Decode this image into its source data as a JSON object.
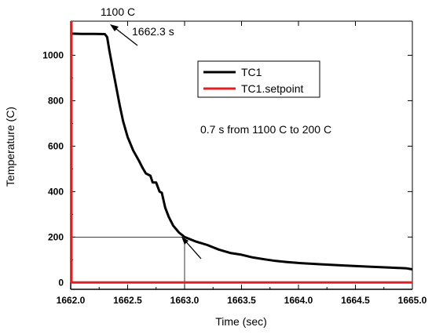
{
  "chart_data": {
    "type": "line",
    "xlabel": "Time (sec)",
    "ylabel": "Temperature (C)",
    "xlim": [
      1662.0,
      1665.0
    ],
    "ylim": [
      -30,
      1150
    ],
    "x_ticks": [
      "1662.0",
      "1662.5",
      "1663.0",
      "1663.5",
      "1664.0",
      "1664.5",
      "1665.0"
    ],
    "y_ticks": [
      "0",
      "200",
      "400",
      "600",
      "800",
      "1000"
    ],
    "grid": false,
    "legend_position": "top-right",
    "series": [
      {
        "name": "TC1",
        "color": "#000000",
        "points": [
          [
            1662.0,
            1095
          ],
          [
            1662.1,
            1094
          ],
          [
            1662.2,
            1094
          ],
          [
            1662.3,
            1093
          ],
          [
            1662.32,
            1080
          ],
          [
            1662.34,
            1020
          ],
          [
            1662.37,
            940
          ],
          [
            1662.4,
            860
          ],
          [
            1662.43,
            780
          ],
          [
            1662.46,
            710
          ],
          [
            1662.5,
            640
          ],
          [
            1662.55,
            580
          ],
          [
            1662.6,
            535
          ],
          [
            1662.63,
            505
          ],
          [
            1662.66,
            480
          ],
          [
            1662.7,
            470
          ],
          [
            1662.72,
            440
          ],
          [
            1662.75,
            440
          ],
          [
            1662.78,
            400
          ],
          [
            1662.8,
            395
          ],
          [
            1662.83,
            330
          ],
          [
            1662.86,
            290
          ],
          [
            1662.9,
            250
          ],
          [
            1662.95,
            220
          ],
          [
            1663.0,
            200
          ],
          [
            1663.1,
            180
          ],
          [
            1663.2,
            165
          ],
          [
            1663.3,
            145
          ],
          [
            1663.4,
            130
          ],
          [
            1663.5,
            122
          ],
          [
            1663.6,
            110
          ],
          [
            1663.7,
            102
          ],
          [
            1663.8,
            95
          ],
          [
            1663.9,
            90
          ],
          [
            1664.0,
            86
          ],
          [
            1664.2,
            80
          ],
          [
            1664.4,
            75
          ],
          [
            1664.6,
            70
          ],
          [
            1664.8,
            66
          ],
          [
            1664.95,
            62
          ],
          [
            1665.0,
            58
          ]
        ]
      },
      {
        "name": "TC1.setpoint",
        "color": "#e02020",
        "points": [
          [
            1662.0,
            0
          ],
          [
            1665.0,
            0
          ]
        ]
      }
    ],
    "reference_lines": {
      "x": 1663.0,
      "y": 200
    },
    "annotations": {
      "peak_value": "1100 C",
      "peak_time": "1662.3 s",
      "duration_note": "0.7 s from 1100 C to 200 C"
    }
  }
}
